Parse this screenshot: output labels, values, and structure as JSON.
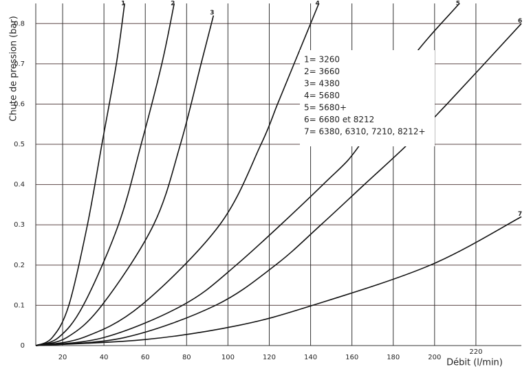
{
  "chart_data": {
    "type": "line",
    "x_label": "Débit (l/min)",
    "y_label": "Chute de pression (bar)",
    "xlim": [
      7,
      242
    ],
    "ylim": [
      0,
      0.85
    ],
    "xticks": [
      20,
      40,
      60,
      80,
      100,
      120,
      140,
      160,
      180,
      200,
      220
    ],
    "yticks": [
      0,
      0.1,
      0.2,
      0.3,
      0.4,
      0.5,
      0.6,
      0.7,
      0.8
    ],
    "grid": true,
    "series": [
      {
        "name": "1",
        "color": "#111111",
        "x": [
          7,
          15,
          23,
          32,
          39,
          46,
          50
        ],
        "values": [
          0,
          0.02,
          0.1,
          0.3,
          0.5,
          0.7,
          0.85
        ]
      },
      {
        "name": "2",
        "color": "#111111",
        "x": [
          7,
          18,
          30,
          47,
          58,
          68,
          74
        ],
        "values": [
          0,
          0.02,
          0.1,
          0.3,
          0.5,
          0.7,
          0.85
        ]
      },
      {
        "name": "3",
        "color": "#111111",
        "x": [
          7,
          22,
          39,
          64,
          77,
          87,
          93
        ],
        "values": [
          0,
          0.02,
          0.1,
          0.3,
          0.5,
          0.7,
          0.82
        ]
      },
      {
        "name": "4",
        "color": "#111111",
        "x": [
          7,
          30,
          58,
          96,
          116,
          124,
          132,
          144
        ],
        "values": [
          0,
          0.02,
          0.1,
          0.3,
          0.5,
          0.6,
          0.7,
          0.85
        ]
      },
      {
        "name": "5",
        "color": "#111111",
        "x": [
          7,
          40,
          78,
          104,
          146,
          164,
          187,
          212
        ],
        "values": [
          0,
          0.02,
          0.1,
          0.2,
          0.4,
          0.5,
          0.7,
          0.85
        ]
      },
      {
        "name": "6",
        "color": "#111111",
        "x": [
          7,
          50,
          94,
          123,
          145,
          166,
          187,
          206,
          242
        ],
        "values": [
          0,
          0.02,
          0.1,
          0.2,
          0.3,
          0.4,
          0.5,
          0.6,
          0.8
        ]
      },
      {
        "name": "7",
        "color": "#111111",
        "x": [
          7,
          60,
          105,
          141,
          198,
          242
        ],
        "values": [
          0,
          0.015,
          0.05,
          0.1,
          0.2,
          0.32
        ]
      }
    ],
    "legend_text": [
      "1= 3260",
      "2= 3660",
      "3= 4380",
      "4= 5680",
      "5= 5680+",
      "6= 6680 et 8212",
      "7= 6380, 6310, 7210, 8212+"
    ]
  }
}
